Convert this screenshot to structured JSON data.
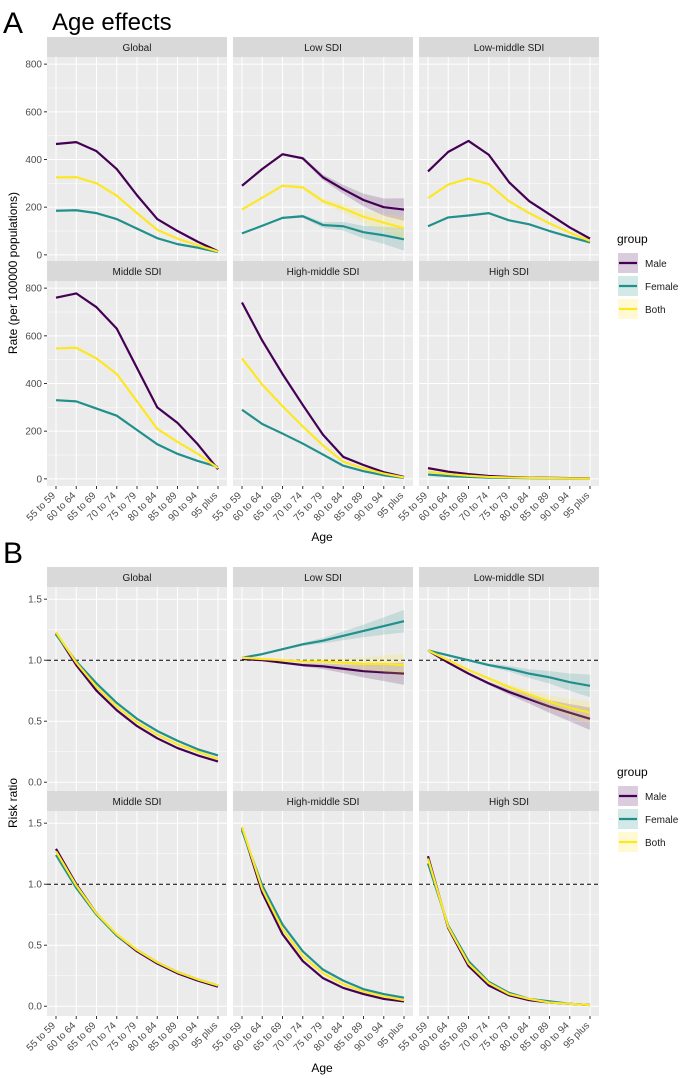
{
  "figure": {
    "panel_a_letter": "A",
    "panel_a_title": "Age effects",
    "panel_b_letter": "B",
    "legend_title": "group",
    "legend_entries": [
      "Male",
      "Female",
      "Both"
    ],
    "colors": {
      "Male": "#440154",
      "Female": "#21908C",
      "Both": "#FDE725",
      "panel_bg": "#EBEBEB",
      "strip_bg": "#D9D9D9",
      "grid": "#FFFFFF"
    }
  },
  "chart_data": [
    {
      "type": "line",
      "title": "Age effects",
      "xlabel": "Age",
      "ylabel": "Rate (per 100000 populations)",
      "ylim": [
        -30,
        830
      ],
      "yticks": [
        0,
        200,
        400,
        600,
        800
      ],
      "categories": [
        "55 to 59",
        "60 to 64",
        "65 to 69",
        "70 to 74",
        "75 to 79",
        "80 to 84",
        "85 to 89",
        "90 to 94",
        "95 plus"
      ],
      "facets": [
        {
          "name": "Global",
          "series": [
            {
              "name": "Male",
              "values": [
                465,
                473,
                435,
                360,
                250,
                150,
                100,
                55,
                15
              ]
            },
            {
              "name": "Female",
              "values": [
                185,
                187,
                175,
                150,
                110,
                70,
                45,
                30,
                12
              ]
            },
            {
              "name": "Both",
              "values": [
                325,
                326,
                300,
                248,
                175,
                105,
                68,
                40,
                14
              ]
            }
          ]
        },
        {
          "name": "Low SDI",
          "series": [
            {
              "name": "Male",
              "values": [
                290,
                360,
                422,
                405,
                325,
                275,
                230,
                200,
                190
              ]
            },
            {
              "name": "Female",
              "values": [
                90,
                122,
                155,
                162,
                125,
                120,
                95,
                82,
                65
              ]
            },
            {
              "name": "Both",
              "values": [
                190,
                240,
                290,
                283,
                225,
                195,
                160,
                135,
                112
              ]
            }
          ]
        },
        {
          "name": "Low-middle SDI",
          "series": [
            {
              "name": "Male",
              "values": [
                350,
                432,
                478,
                420,
                305,
                225,
                170,
                115,
                68
              ]
            },
            {
              "name": "Female",
              "values": [
                120,
                157,
                165,
                175,
                145,
                128,
                100,
                75,
                52
              ]
            },
            {
              "name": "Both",
              "values": [
                238,
                295,
                320,
                297,
                225,
                175,
                132,
                93,
                58
              ]
            }
          ]
        },
        {
          "name": "Middle SDI",
          "series": [
            {
              "name": "Male",
              "values": [
                760,
                778,
                720,
                630,
                465,
                300,
                235,
                145,
                40
              ]
            },
            {
              "name": "Female",
              "values": [
                330,
                325,
                295,
                265,
                205,
                145,
                105,
                75,
                50
              ]
            },
            {
              "name": "Both",
              "values": [
                547,
                550,
                505,
                440,
                325,
                210,
                155,
                105,
                45
              ]
            }
          ]
        },
        {
          "name": "High-middle SDI",
          "series": [
            {
              "name": "Male",
              "values": [
                740,
                580,
                440,
                310,
                185,
                92,
                58,
                28,
                8
              ]
            },
            {
              "name": "Female",
              "values": [
                290,
                230,
                190,
                148,
                102,
                55,
                32,
                15,
                4
              ]
            },
            {
              "name": "Both",
              "values": [
                505,
                395,
                305,
                220,
                140,
                72,
                44,
                22,
                6
              ]
            }
          ]
        },
        {
          "name": "High SDI",
          "series": [
            {
              "name": "Male",
              "values": [
                45,
                30,
                20,
                12,
                8,
                5,
                4,
                3,
                2
              ]
            },
            {
              "name": "Female",
              "values": [
                18,
                12,
                8,
                5,
                4,
                3,
                2,
                1,
                1
              ]
            },
            {
              "name": "Both",
              "values": [
                30,
                20,
                13,
                8,
                6,
                4,
                3,
                2,
                1
              ]
            }
          ]
        }
      ]
    },
    {
      "type": "line",
      "xlabel": "Age",
      "ylabel": "Risk ratio",
      "ylim": [
        -0.08,
        1.6
      ],
      "yticks": [
        0.0,
        0.5,
        1.0,
        1.5
      ],
      "yticklabels": [
        "0.0",
        "0.5",
        "1.0",
        "1.5"
      ],
      "reference_line": 1.0,
      "categories": [
        "55 to 59",
        "60 to 64",
        "65 to 69",
        "70 to 74",
        "75 to 79",
        "80 to 84",
        "85 to 89",
        "90 to 94",
        "95 plus"
      ],
      "facets": [
        {
          "name": "Global",
          "series": [
            {
              "name": "Male",
              "values": [
                1.22,
                0.96,
                0.75,
                0.59,
                0.46,
                0.36,
                0.28,
                0.22,
                0.17
              ]
            },
            {
              "name": "Female",
              "values": [
                1.21,
                0.99,
                0.81,
                0.65,
                0.52,
                0.42,
                0.34,
                0.27,
                0.22
              ]
            },
            {
              "name": "Both",
              "values": [
                1.23,
                0.98,
                0.78,
                0.62,
                0.49,
                0.39,
                0.31,
                0.25,
                0.19
              ]
            }
          ]
        },
        {
          "name": "Low SDI",
          "series": [
            {
              "name": "Male",
              "values": [
                1.01,
                1.0,
                0.98,
                0.96,
                0.95,
                0.93,
                0.91,
                0.9,
                0.89
              ]
            },
            {
              "name": "Female",
              "values": [
                1.02,
                1.05,
                1.09,
                1.13,
                1.16,
                1.2,
                1.24,
                1.28,
                1.32
              ]
            },
            {
              "name": "Both",
              "values": [
                1.02,
                1.01,
                1.0,
                0.99,
                0.99,
                0.98,
                0.97,
                0.97,
                0.96
              ]
            }
          ]
        },
        {
          "name": "Low-middle SDI",
          "series": [
            {
              "name": "Male",
              "values": [
                1.08,
                0.98,
                0.89,
                0.81,
                0.74,
                0.68,
                0.62,
                0.57,
                0.52
              ]
            },
            {
              "name": "Female",
              "values": [
                1.08,
                1.04,
                1.0,
                0.96,
                0.93,
                0.89,
                0.86,
                0.82,
                0.79
              ]
            },
            {
              "name": "Both",
              "values": [
                1.08,
                1.0,
                0.92,
                0.85,
                0.78,
                0.72,
                0.66,
                0.61,
                0.57
              ]
            }
          ]
        },
        {
          "name": "Middle SDI",
          "series": [
            {
              "name": "Male",
              "values": [
                1.29,
                1.0,
                0.76,
                0.58,
                0.45,
                0.35,
                0.27,
                0.21,
                0.16
              ]
            },
            {
              "name": "Female",
              "values": [
                1.24,
                0.97,
                0.75,
                0.58,
                0.46,
                0.36,
                0.28,
                0.22,
                0.17
              ]
            },
            {
              "name": "Both",
              "values": [
                1.27,
                0.99,
                0.76,
                0.59,
                0.46,
                0.36,
                0.28,
                0.22,
                0.17
              ]
            }
          ]
        },
        {
          "name": "High-middle SDI",
          "series": [
            {
              "name": "Male",
              "values": [
                1.46,
                0.93,
                0.59,
                0.37,
                0.23,
                0.15,
                0.1,
                0.06,
                0.04
              ]
            },
            {
              "name": "Female",
              "values": [
                1.44,
                0.99,
                0.67,
                0.45,
                0.3,
                0.21,
                0.14,
                0.1,
                0.07
              ]
            },
            {
              "name": "Both",
              "values": [
                1.47,
                0.96,
                0.63,
                0.41,
                0.27,
                0.18,
                0.12,
                0.08,
                0.05
              ]
            }
          ]
        },
        {
          "name": "High SDI",
          "series": [
            {
              "name": "Male",
              "values": [
                1.23,
                0.64,
                0.33,
                0.17,
                0.09,
                0.05,
                0.03,
                0.02,
                0.01
              ]
            },
            {
              "name": "Female",
              "values": [
                1.17,
                0.66,
                0.37,
                0.2,
                0.11,
                0.06,
                0.04,
                0.02,
                0.01
              ]
            },
            {
              "name": "Both",
              "values": [
                1.21,
                0.65,
                0.35,
                0.19,
                0.1,
                0.06,
                0.03,
                0.02,
                0.01
              ]
            }
          ]
        }
      ]
    }
  ]
}
